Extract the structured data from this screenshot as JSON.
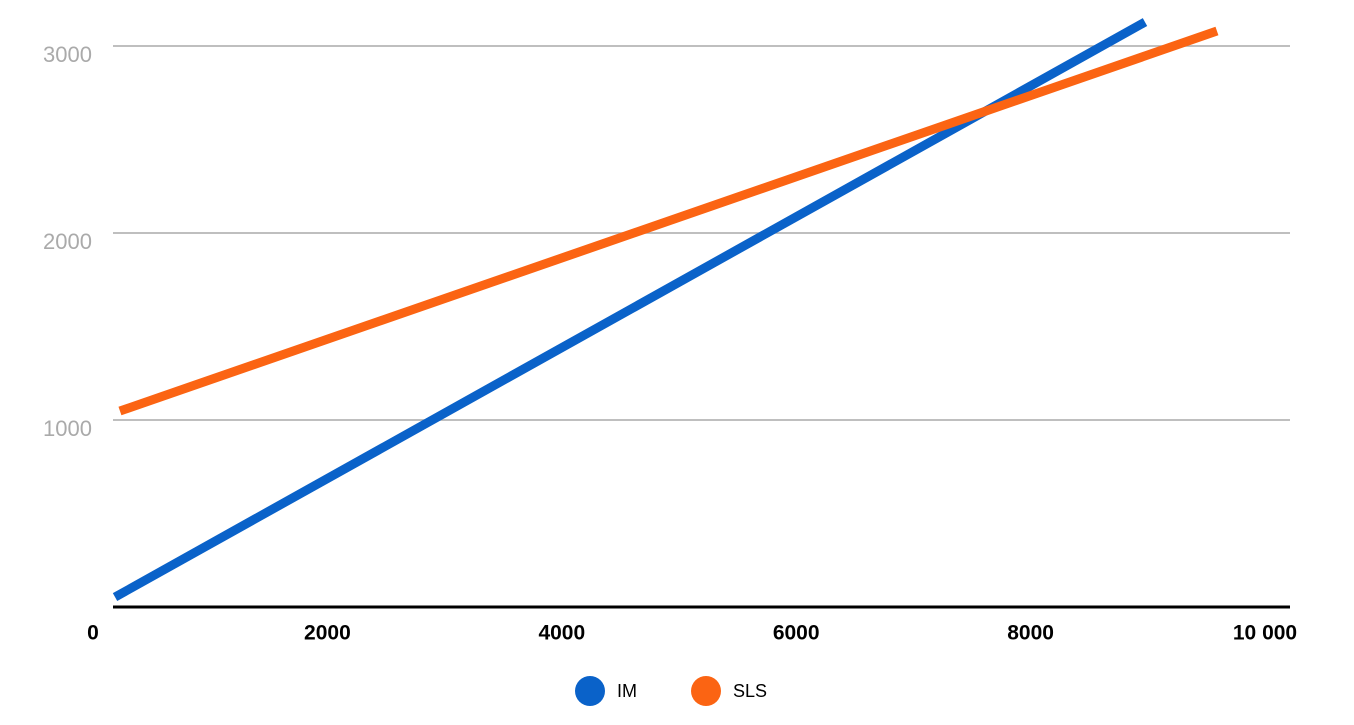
{
  "chart_data": {
    "type": "line",
    "series": [
      {
        "name": "IM",
        "color": "#0a62c9",
        "x": [
          188,
          8976
        ],
        "values": [
          53,
          3128
        ]
      },
      {
        "name": "SLS",
        "color": "#fb6413",
        "x": [
          230,
          9590
        ],
        "values": [
          1048,
          3080
        ]
      }
    ],
    "xlim": [
      0,
      10000
    ],
    "ylim": [
      0,
      3200
    ],
    "xticks": [
      0,
      2000,
      4000,
      6000,
      8000,
      {
        "value": 10000,
        "label": "10 000"
      }
    ],
    "yticks": [
      1000,
      2000,
      3000
    ],
    "grid": true,
    "legend": "bottom"
  }
}
